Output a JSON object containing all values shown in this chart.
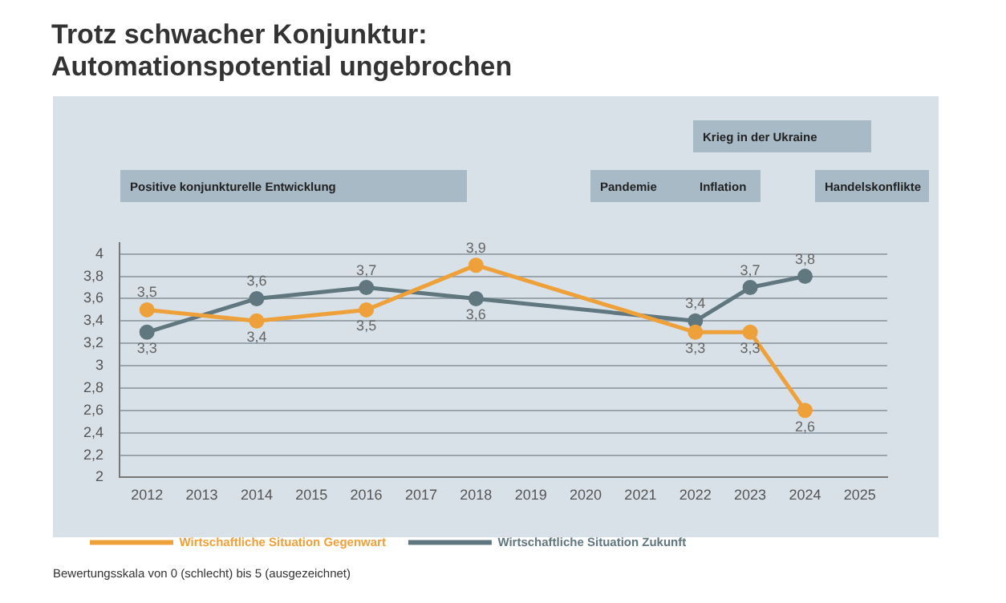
{
  "chart_data": {
    "type": "line",
    "title": "Trotz schwacher Konjunktur:\nAutomationspotential ungebrochen",
    "categories": [
      "2012",
      "2013",
      "2014",
      "2015",
      "2016",
      "2017",
      "2018",
      "2019",
      "2020",
      "2021",
      "2022",
      "2023",
      "2024",
      "2025"
    ],
    "series": [
      {
        "name": "Wirtschaftliche Situation Gegenwart",
        "color": "#eea03a",
        "values": [
          3.5,
          null,
          3.4,
          null,
          3.5,
          null,
          3.9,
          null,
          null,
          null,
          3.3,
          3.3,
          2.6,
          null
        ],
        "value_labels": [
          "3,5",
          null,
          "3,4",
          null,
          "3,5",
          null,
          "3,9",
          null,
          null,
          null,
          "3,3",
          "3,3",
          "2,6",
          null
        ]
      },
      {
        "name": "Wirtschaftliche Situation Zukunft",
        "color": "#61777f",
        "values": [
          3.3,
          null,
          3.6,
          null,
          3.7,
          null,
          3.6,
          null,
          null,
          null,
          3.4,
          3.7,
          3.8,
          null
        ],
        "value_labels": [
          "3,3",
          null,
          "3,6",
          null,
          "3,7",
          null,
          "3,6",
          null,
          null,
          null,
          "3,4",
          "3,7",
          "3,8",
          null
        ]
      }
    ],
    "ylim": [
      2,
      4.1
    ],
    "yticks": [
      2,
      {
        "value": 2.2,
        "label": "2,2"
      },
      {
        "value": 2.4,
        "label": "2,4"
      },
      {
        "value": 2.6,
        "label": "2,6"
      },
      {
        "value": 2.8,
        "label": "2,8"
      },
      3,
      {
        "value": 3.2,
        "label": "3,2"
      },
      {
        "value": 3.4,
        "label": "3,4"
      },
      {
        "value": 3.6,
        "label": "3,6"
      },
      {
        "value": 3.8,
        "label": "3,8"
      },
      4
    ],
    "grid": "y",
    "marker": "circle",
    "line_style": "solid",
    "legend": "bottom",
    "annotations": [
      "Krieg in der Ukraine",
      "Positive konjunkturelle Entwicklung",
      "Pandemie",
      "Inflation",
      "Handelskonflikte",
      "Bewertungsskala von 0 (schlecht) bis 5 (ausgezeichnet)"
    ]
  }
}
